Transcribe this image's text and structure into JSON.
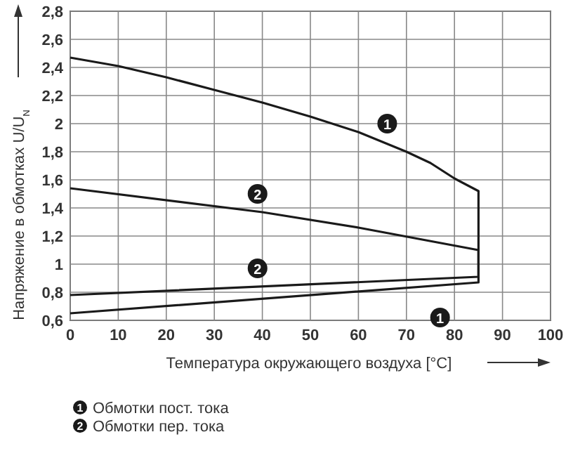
{
  "chart_data": {
    "type": "line",
    "xlabel": "Температура окружающего воздуха [°C]",
    "ylabel": "Напряжение в обмотках  U/U$_{N}$",
    "xlim": [
      0,
      100
    ],
    "xticks": [
      0,
      10,
      20,
      30,
      40,
      50,
      60,
      70,
      80,
      90,
      100
    ],
    "ylim": [
      0.6,
      2.8
    ],
    "yticks": [
      {
        "value": 0.6,
        "label": "0,6"
      },
      {
        "value": 0.8,
        "label": "0,8"
      },
      1,
      {
        "value": 1.2,
        "label": "1,2"
      },
      {
        "value": 1.4,
        "label": "1,4"
      },
      {
        "value": 1.6,
        "label": "1,6"
      },
      {
        "value": 1.8,
        "label": "1,8"
      },
      2,
      {
        "value": 2.2,
        "label": "2,2"
      },
      {
        "value": 2.4,
        "label": "2,4"
      },
      {
        "value": 2.6,
        "label": "2,6"
      },
      {
        "value": 2.8,
        "label": "2,8"
      }
    ],
    "grid": true,
    "legend": "bottom",
    "marker": "none",
    "line_style": "solid",
    "series": [
      {
        "name": "Обмотки пост. тока",
        "color": "#1a1a1a",
        "x": [
          0,
          10,
          20,
          30,
          40,
          50,
          60,
          70,
          75,
          80,
          85,
          85,
          0
        ],
        "values": [
          2.47,
          2.41,
          2.33,
          2.24,
          2.15,
          2.05,
          1.94,
          1.8,
          1.72,
          1.61,
          1.52,
          0.87,
          0.65
        ]
      },
      {
        "name": "Обмотки пер. тока",
        "color": "#1a1a1a",
        "x": [
          0,
          40,
          60,
          85,
          85,
          0
        ],
        "values": [
          1.54,
          1.37,
          1.26,
          1.1,
          0.91,
          0.78
        ]
      }
    ],
    "annotations": [
      {
        "text": "1",
        "x": 66,
        "y": 2.0
      },
      {
        "text": "2",
        "x": 39,
        "y": 1.5
      },
      {
        "text": "2",
        "x": 39,
        "y": 0.97
      },
      {
        "text": "1",
        "x": 77,
        "y": 0.62
      }
    ]
  }
}
